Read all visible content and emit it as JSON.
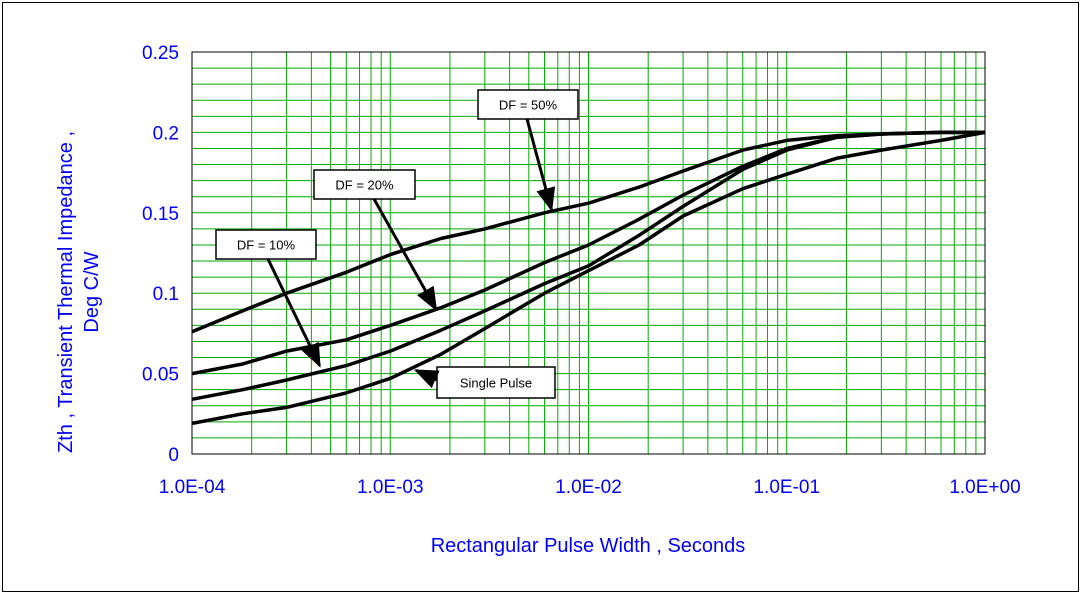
{
  "chart_data": {
    "type": "line",
    "title": "",
    "xlabel": "Rectangular Pulse Width , Seconds",
    "ylabel_lines": [
      "Zth , Transient Thermal Impedance ,",
      "Deg C/W"
    ],
    "x_scale": "log",
    "xlim": [
      0.0001,
      1.0
    ],
    "ylim": [
      0,
      0.25
    ],
    "grid": true,
    "x_tick_values": [
      0.0001,
      0.001,
      0.01,
      0.1,
      1.0
    ],
    "x_tick_labels": [
      "1.0E-04",
      "1.0E-03",
      "1.0E-02",
      "1.0E-01",
      "1.0E+00"
    ],
    "y_tick_values": [
      0,
      0.05,
      0.1,
      0.15,
      0.2,
      0.25
    ],
    "y_tick_labels": [
      "0",
      "0.05",
      "0.1",
      "0.15",
      "0.2",
      "0.25"
    ],
    "series": [
      {
        "name": "DF = 50%",
        "x": [
          0.0001,
          0.00018,
          0.0003,
          0.0006,
          0.001,
          0.0018,
          0.003,
          0.006,
          0.01,
          0.018,
          0.03,
          0.06,
          0.1,
          0.18,
          0.3,
          0.6,
          1.0
        ],
        "y": [
          0.076,
          0.089,
          0.1,
          0.113,
          0.124,
          0.134,
          0.14,
          0.15,
          0.156,
          0.166,
          0.176,
          0.189,
          0.195,
          0.198,
          0.199,
          0.2,
          0.2
        ]
      },
      {
        "name": "DF = 20%",
        "x": [
          0.0001,
          0.00018,
          0.0003,
          0.0006,
          0.001,
          0.0018,
          0.003,
          0.006,
          0.01,
          0.018,
          0.03,
          0.06,
          0.1,
          0.18,
          0.3,
          0.6,
          1.0
        ],
        "y": [
          0.05,
          0.056,
          0.064,
          0.071,
          0.08,
          0.091,
          0.102,
          0.119,
          0.13,
          0.146,
          0.161,
          0.179,
          0.19,
          0.197,
          0.199,
          0.2,
          0.2
        ]
      },
      {
        "name": "DF = 10%",
        "x": [
          0.0001,
          0.00018,
          0.0003,
          0.0006,
          0.001,
          0.0018,
          0.003,
          0.006,
          0.01,
          0.018,
          0.03,
          0.06,
          0.1,
          0.18,
          0.3,
          0.6,
          1.0
        ],
        "y": [
          0.034,
          0.04,
          0.046,
          0.055,
          0.064,
          0.077,
          0.089,
          0.106,
          0.117,
          0.136,
          0.154,
          0.177,
          0.189,
          0.197,
          0.199,
          0.2,
          0.2
        ]
      },
      {
        "name": "Single Pulse",
        "x": [
          0.0001,
          0.00018,
          0.0003,
          0.0006,
          0.001,
          0.0018,
          0.003,
          0.006,
          0.01,
          0.018,
          0.03,
          0.06,
          0.1,
          0.18,
          0.3,
          0.6,
          1.0
        ],
        "y": [
          0.019,
          0.025,
          0.029,
          0.038,
          0.047,
          0.062,
          0.078,
          0.1,
          0.114,
          0.13,
          0.148,
          0.165,
          0.174,
          0.184,
          0.189,
          0.195,
          0.2
        ]
      }
    ],
    "annotations": [
      {
        "text": "DF = 50%",
        "points_to": {
          "x": 0.0065,
          "y": 0.152
        }
      },
      {
        "text": "DF = 20%",
        "points_to": {
          "x": 0.0017,
          "y": 0.09
        }
      },
      {
        "text": "DF = 10%",
        "points_to": {
          "x": 0.00044,
          "y": 0.055
        }
      },
      {
        "text": "Single Pulse",
        "points_to": {
          "x": 0.00135,
          "y": 0.052
        }
      }
    ],
    "colors": {
      "axis_text": "#0000ff",
      "grid": "#00aa00",
      "series": "#000000"
    }
  }
}
